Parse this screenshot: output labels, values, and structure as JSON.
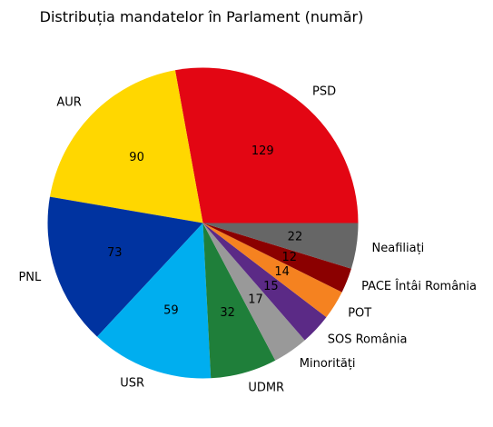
{
  "chart_data": {
    "type": "pie",
    "title": "Distribuția mandatelor în Parlament (număr)",
    "categories": [
      "PSD",
      "AUR",
      "PNL",
      "USR",
      "UDMR",
      "Minorități",
      "SOS România",
      "POT",
      "PACE Întâi România",
      "Neafiliați"
    ],
    "values": [
      129,
      90,
      73,
      59,
      32,
      17,
      15,
      14,
      12,
      22
    ],
    "colors": [
      "#e30613",
      "#ffd700",
      "#0033a0",
      "#00aeef",
      "#1f7f3a",
      "#999999",
      "#5b2a86",
      "#f58220",
      "#8b0000",
      "#666666"
    ],
    "start_angle_deg": 0,
    "direction": "counterclockwise",
    "legend": "none"
  }
}
